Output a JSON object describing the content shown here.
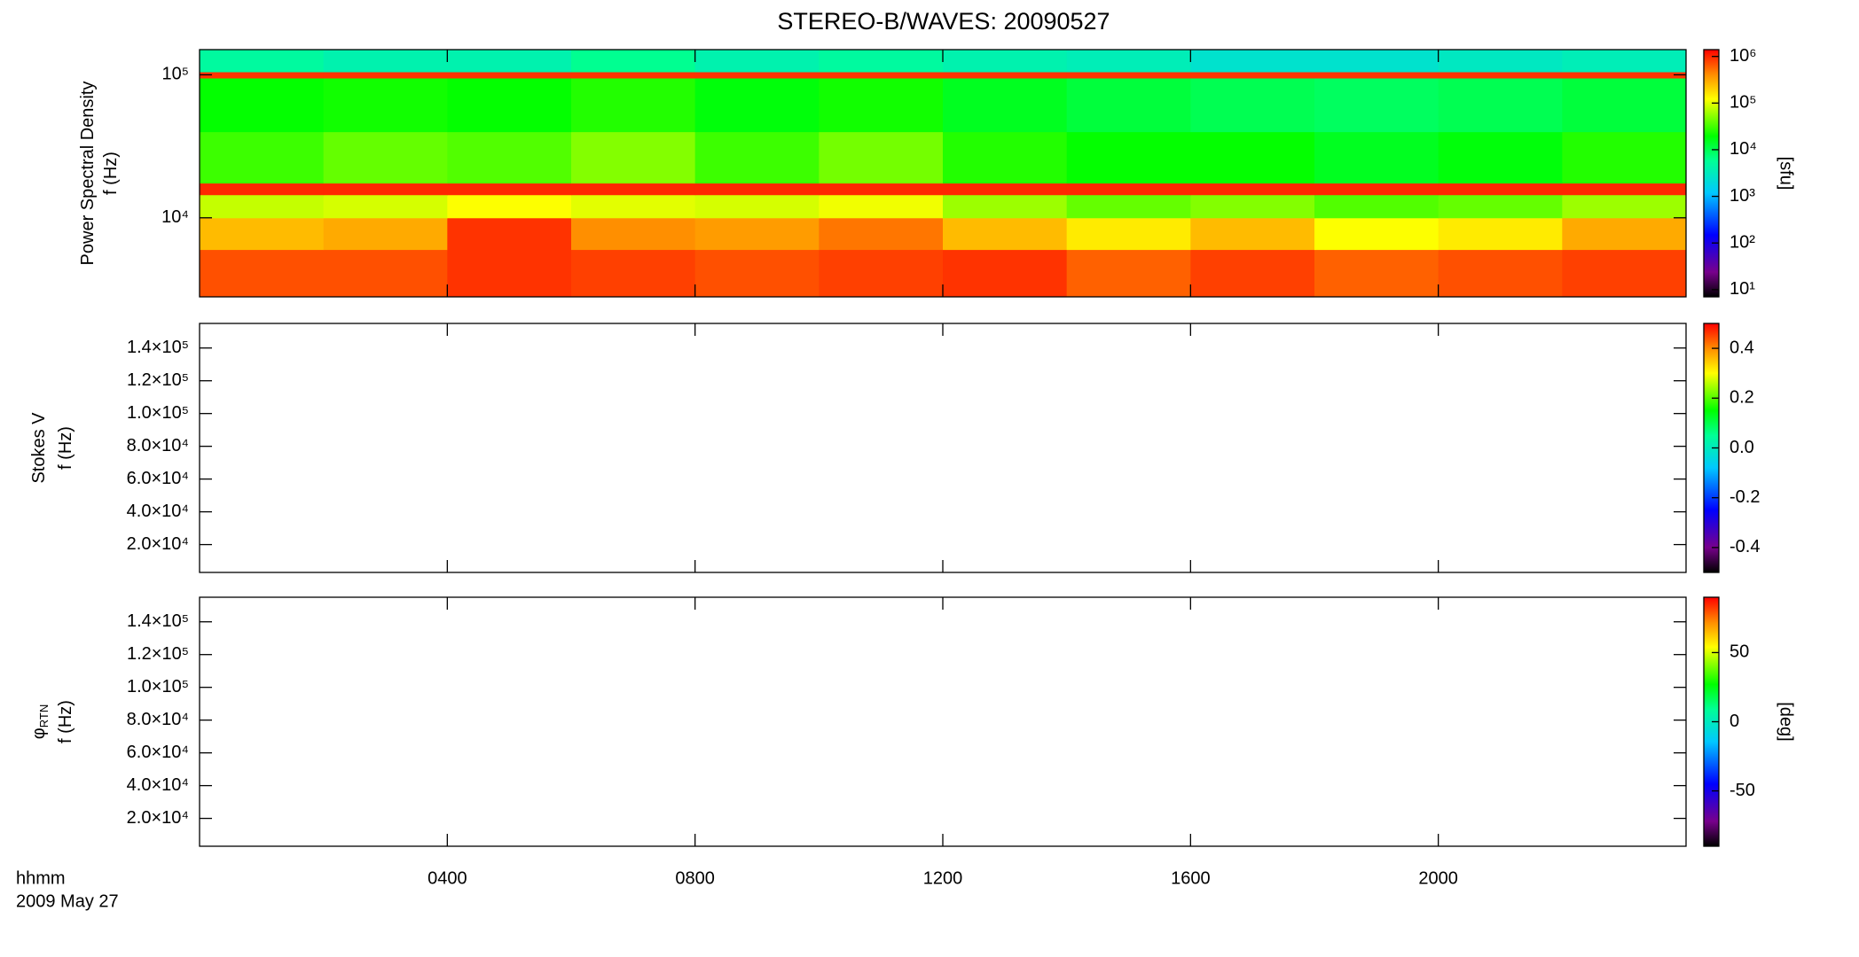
{
  "chart_data": [
    {
      "type": "heatmap",
      "title": "STEREO-B/WAVES: 20090527",
      "ylabel": [
        "Power Spectral Density",
        "f (Hz)"
      ],
      "ylog": true,
      "ylim": [
        2800,
        150000
      ],
      "yticks": [
        {
          "value": 10000,
          "label": "10⁴"
        },
        {
          "value": 100000,
          "label": "10⁵"
        }
      ],
      "x_bins": [
        0,
        2,
        4,
        6,
        8,
        10,
        12,
        14,
        16,
        18,
        20,
        22,
        24
      ],
      "y_bins": [
        2800,
        6000,
        10000,
        14500,
        17500,
        40000,
        95000,
        105000,
        150000
      ],
      "z": [
        [
          700000,
          700000,
          900000,
          800000,
          700000,
          800000,
          900000,
          600000,
          800000,
          600000,
          700000,
          800000
        ],
        [
          250000,
          300000,
          900000,
          400000,
          350000,
          500000,
          250000,
          150000,
          250000,
          120000,
          150000,
          300000
        ],
        [
          80000,
          90000,
          120000,
          100000,
          90000,
          110000,
          60000,
          40000,
          50000,
          35000,
          40000,
          60000
        ],
        [
          1000000,
          1000000,
          1000000,
          1000000,
          1000000,
          1000000,
          1000000,
          1000000,
          1000000,
          1000000,
          1000000,
          1000000
        ],
        [
          30000,
          40000,
          35000,
          50000,
          30000,
          45000,
          25000,
          20000,
          20000,
          15000,
          18000,
          25000
        ],
        [
          20000,
          22000,
          20000,
          25000,
          18000,
          22000,
          15000,
          12000,
          10000,
          9000,
          10000,
          12000
        ],
        [
          900000,
          900000,
          900000,
          900000,
          900000,
          900000,
          900000,
          900000,
          900000,
          900000,
          900000,
          900000
        ],
        [
          5000,
          4000,
          4000,
          6000,
          4000,
          5000,
          4000,
          3500,
          2500,
          2500,
          3000,
          3500
        ]
      ],
      "zlog": true,
      "zlim": [
        7,
        1400000
      ],
      "zticks": [
        {
          "value": 10,
          "label": "10¹"
        },
        {
          "value": 100,
          "label": "10²"
        },
        {
          "value": 1000,
          "label": "10³"
        },
        {
          "value": 10000,
          "label": "10⁴"
        },
        {
          "value": 100000,
          "label": "10⁵"
        },
        {
          "value": 1000000,
          "label": "10⁶"
        }
      ],
      "zlabel": "[sfu]"
    },
    {
      "type": "heatmap",
      "ylabel": [
        "Stokes V",
        "f (Hz)"
      ],
      "ylim": [
        3000,
        155000
      ],
      "yticks": [
        {
          "value": 20000,
          "label": "2.0×10⁴"
        },
        {
          "value": 40000,
          "label": "4.0×10⁴"
        },
        {
          "value": 60000,
          "label": "6.0×10⁴"
        },
        {
          "value": 80000,
          "label": "8.0×10⁴"
        },
        {
          "value": 100000,
          "label": "1.0×10⁵"
        },
        {
          "value": 120000,
          "label": "1.2×10⁵"
        },
        {
          "value": 140000,
          "label": "1.4×10⁵"
        }
      ],
      "zlim": [
        -0.5,
        0.5
      ],
      "zticks": [
        -0.4,
        -0.2,
        {
          "value": 0,
          "label": "0.0"
        },
        0.2,
        0.4
      ]
    },
    {
      "type": "heatmap",
      "ylabel": [
        "φ",
        "f (Hz)"
      ],
      "ylabel_subscript": "RTN",
      "ylim": [
        3000,
        155000
      ],
      "yticks": [
        {
          "value": 20000,
          "label": "2.0×10⁴"
        },
        {
          "value": 40000,
          "label": "4.0×10⁴"
        },
        {
          "value": 60000,
          "label": "6.0×10⁴"
        },
        {
          "value": 80000,
          "label": "8.0×10⁴"
        },
        {
          "value": 100000,
          "label": "1.0×10⁵"
        },
        {
          "value": 120000,
          "label": "1.2×10⁵"
        },
        {
          "value": 140000,
          "label": "1.4×10⁵"
        }
      ],
      "zlim": [
        -90,
        90
      ],
      "zticks": [
        -50,
        0,
        50
      ],
      "zlabel": "[deg]",
      "xlabel": "hhmm",
      "date": "2009 May 27",
      "xlim": [
        0,
        24
      ],
      "xticks": [
        {
          "value": 4,
          "label": "0400"
        },
        {
          "value": 8,
          "label": "0800"
        },
        {
          "value": 12,
          "label": "1200"
        },
        {
          "value": 16,
          "label": "1600"
        },
        {
          "value": 20,
          "label": "2000"
        }
      ]
    }
  ]
}
